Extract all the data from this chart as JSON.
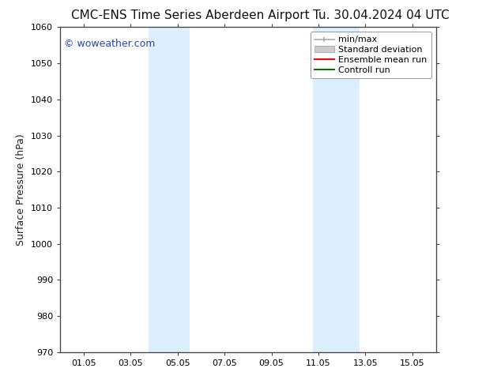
{
  "title_left": "CMC-ENS Time Series Aberdeen Airport",
  "title_right": "Tu. 30.04.2024 04 UTC",
  "ylabel": "Surface Pressure (hPa)",
  "ylim": [
    970,
    1060
  ],
  "yticks": [
    970,
    980,
    990,
    1000,
    1010,
    1020,
    1030,
    1040,
    1050,
    1060
  ],
  "xtick_positions": [
    1,
    3,
    5,
    7,
    9,
    11,
    13,
    15
  ],
  "xtick_labels": [
    "01.05",
    "03.05",
    "05.05",
    "07.05",
    "09.05",
    "11.05",
    "13.05",
    "15.05"
  ],
  "xlim": [
    0,
    16
  ],
  "shaded_regions": [
    {
      "xmin": 3.75,
      "xmax": 5.5
    },
    {
      "xmin": 10.75,
      "xmax": 12.75
    }
  ],
  "shaded_color": "#ddeeff",
  "watermark": "© woweather.com",
  "watermark_color": "#2244bb",
  "legend_labels": [
    "min/max",
    "Standard deviation",
    "Ensemble mean run",
    "Controll run"
  ],
  "legend_line_color": "#aaaaaa",
  "legend_patch_color": "#cccccc",
  "legend_red_color": "#ff0000",
  "legend_green_color": "#007700",
  "background_color": "#ffffff",
  "spine_color": "#444444",
  "tick_color": "#444444",
  "title_fontsize": 11,
  "tick_fontsize": 8,
  "ylabel_fontsize": 9,
  "watermark_fontsize": 9,
  "legend_fontsize": 8
}
